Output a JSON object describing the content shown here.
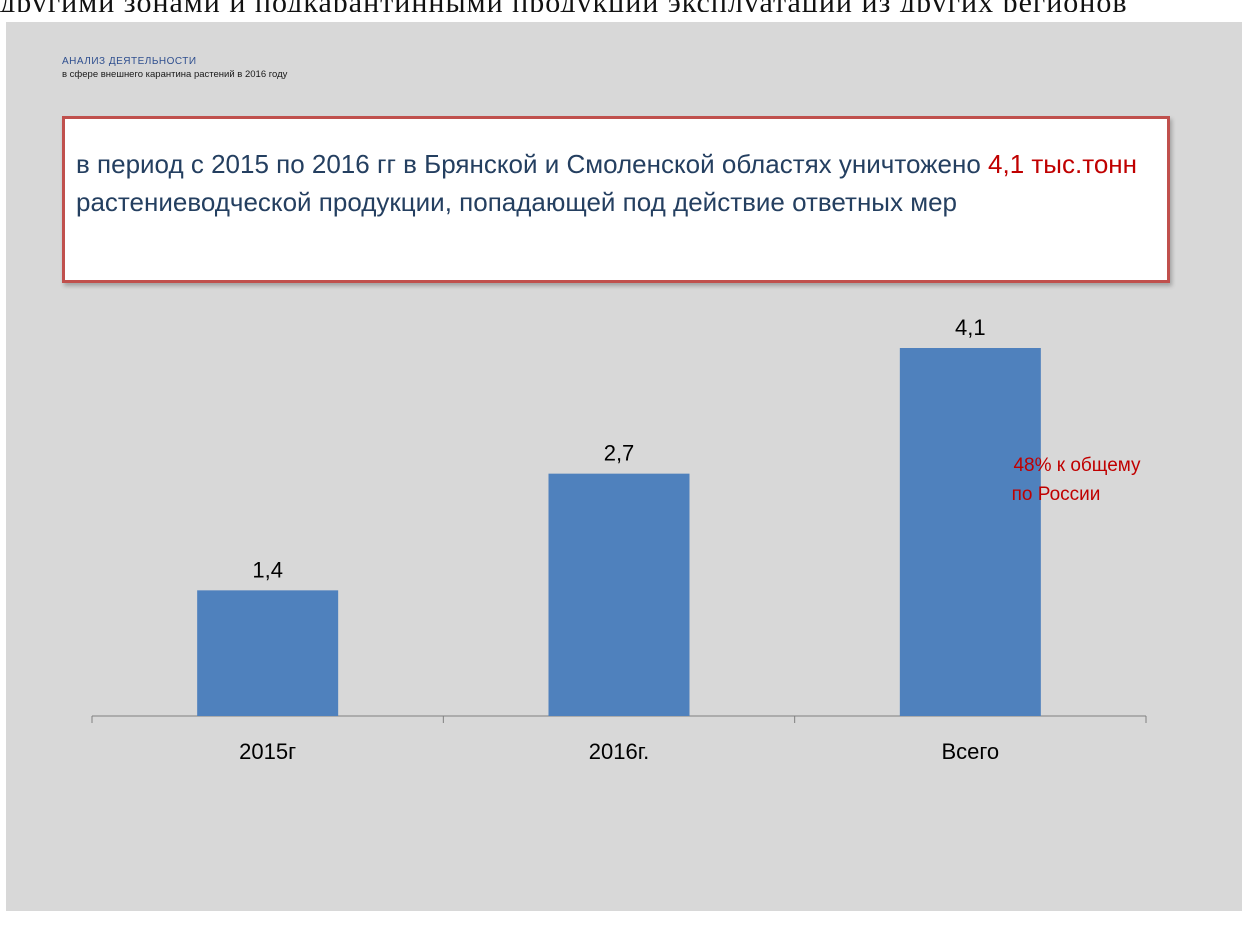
{
  "top_fragment": "другими зонами и подкарантинными продукции эксплуатации из других регионов",
  "header": {
    "title": "АНАЛИЗ ДЕЯТЕЛЬНОСТИ",
    "subtitle": "в сфере внешнего карантина растений в 2016 году"
  },
  "message": {
    "part1": "в период с 2015 по 2016 гг в Брянской и Смоленской областях уничтожено ",
    "highlight": "4,1 тыс.тонн",
    "part2": " растениеводческой продукции, попадающей под действие ответных мер"
  },
  "annotation": {
    "line1": "48% к общему",
    "line2": "по России"
  },
  "colors": {
    "bar": "#4f81bd",
    "frame": "#c0504d",
    "highlight": "#c00000",
    "slide_bg": "#d8d8d8"
  },
  "chart_data": {
    "type": "bar",
    "categories": [
      "2015г",
      "2016г.",
      "Всего"
    ],
    "values": [
      1.4,
      2.7,
      4.1
    ],
    "data_labels": [
      "1,4",
      "2,7",
      "4,1"
    ],
    "ylim": [
      0,
      4.1
    ],
    "grid": false,
    "legend": "none"
  }
}
